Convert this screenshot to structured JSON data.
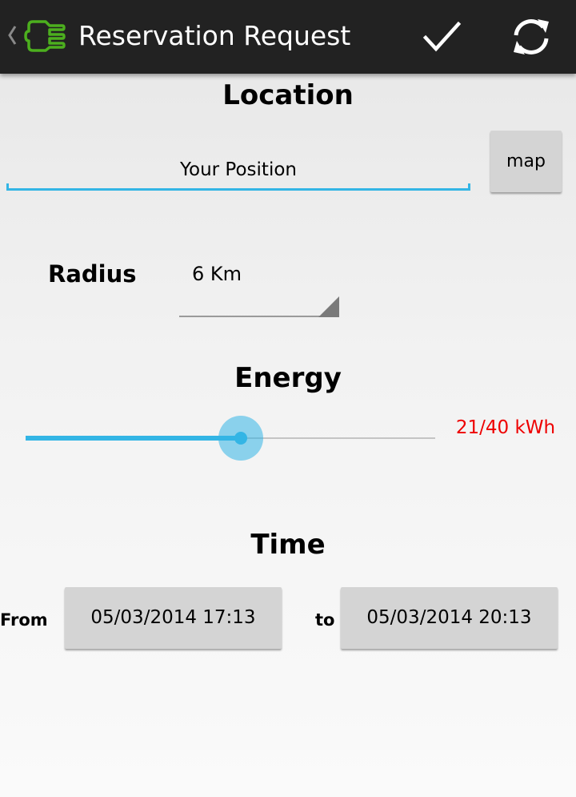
{
  "action_bar": {
    "title": "Reservation Request",
    "app_icon": "plug-icon",
    "confirm_icon": "check-icon",
    "refresh_icon": "refresh-icon",
    "icon_color": "#4caf1e",
    "background": "#222222"
  },
  "location": {
    "title": "Location",
    "field_value": "Your Position",
    "map_button": "map",
    "accent": "#33b5e5"
  },
  "radius": {
    "label": "Radius",
    "selected": "6 Km"
  },
  "energy": {
    "title": "Energy",
    "value_text": "21/40 kWh",
    "current": 21,
    "max": 40,
    "value_color": "#ee0000"
  },
  "time": {
    "title": "Time",
    "from_label": "From",
    "from_value": "05/03/2014 17:13",
    "to_label": "to",
    "to_value": "05/03/2014 20:13"
  }
}
